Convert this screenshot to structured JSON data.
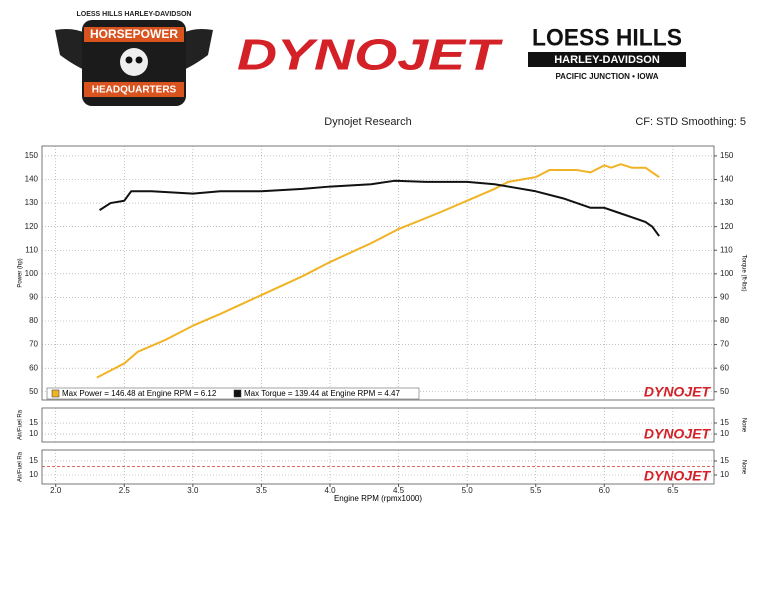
{
  "logos": {
    "left_top": "LOESS HILLS HARLEY-DAVIDSON",
    "left_main": "HORSEPOWER",
    "left_bottom": "HEADQUARTERS",
    "center": "DYNOJET",
    "right_main": "LOESS HILLS",
    "right_brand": "HARLEY-DAVIDSON",
    "right_sub": "PACIFIC JUNCTION • IOWA"
  },
  "header": {
    "title": "Dynojet Research",
    "settings": "CF: STD Smoothing: 5"
  },
  "chart_data": [
    {
      "type": "line",
      "ylabel": "Power (hp)",
      "y2label": "Torque (ft-lbs)",
      "brand": "DYNOJET",
      "xlim": [
        1.9,
        6.8
      ],
      "ylim": [
        46.5,
        154.2
      ],
      "yticks": [
        50,
        60,
        70,
        80,
        90,
        100,
        110,
        120,
        130,
        140,
        150
      ],
      "y2lim": [
        46.5,
        154.2
      ],
      "y2ticks": [
        50,
        60,
        70,
        80,
        90,
        100,
        110,
        120,
        130,
        140,
        150
      ],
      "grid": true,
      "series": [
        {
          "name": "Max Power = 146.48 at Engine RPM = 6.12",
          "color": "#f0b323",
          "x": [
            2.3,
            2.4,
            2.5,
            2.6,
            2.8,
            3.0,
            3.2,
            3.5,
            3.8,
            4.0,
            4.3,
            4.5,
            4.8,
            5.0,
            5.2,
            5.3,
            5.5,
            5.6,
            5.7,
            5.8,
            5.9,
            6.0,
            6.05,
            6.12,
            6.2,
            6.3,
            6.35,
            6.4
          ],
          "values": [
            56,
            59,
            62,
            67,
            72,
            78,
            83,
            91,
            99,
            105,
            113,
            119,
            126,
            131,
            136,
            139,
            141,
            144,
            144,
            144,
            143,
            146,
            145,
            146.48,
            145,
            145,
            143,
            141
          ]
        },
        {
          "name": "Max Torque = 139.44 at Engine RPM = 4.47",
          "color": "#111111",
          "axis": "y2",
          "x": [
            2.32,
            2.4,
            2.5,
            2.55,
            2.7,
            3.0,
            3.2,
            3.5,
            3.8,
            4.0,
            4.3,
            4.47,
            4.7,
            5.0,
            5.2,
            5.3,
            5.5,
            5.7,
            5.8,
            5.9,
            6.0,
            6.1,
            6.2,
            6.3,
            6.35,
            6.4
          ],
          "values": [
            127,
            130,
            131,
            135,
            135,
            134,
            135,
            135,
            136,
            137,
            138,
            139.44,
            139,
            139,
            138,
            137,
            135,
            132,
            130,
            128,
            128,
            126,
            124,
            122,
            120,
            116
          ]
        }
      ]
    },
    {
      "type": "line",
      "ylabel": "Air/Fuel Ra",
      "y2label": "None",
      "brand": "DYNOJET",
      "xlim": [
        1.9,
        6.8
      ],
      "ylim": [
        6.4,
        21.8
      ],
      "yticks": [
        10,
        15
      ],
      "y2lim": [
        6.4,
        21.8
      ],
      "y2ticks": [
        10,
        15
      ],
      "grid": true
    },
    {
      "type": "line",
      "ylabel": "Air/Fuel Ra",
      "y2label": "None",
      "brand": "DYNOJET",
      "xlabel": "Engine RPM (rpmx1000)",
      "xlim": [
        1.9,
        6.8
      ],
      "ylim": [
        6.8,
        18.9
      ],
      "yticks": [
        10,
        15
      ],
      "y2lim": [
        6.8,
        18.9
      ],
      "y2ticks": [
        10,
        15
      ],
      "grid": true,
      "reference_line": {
        "value": 13,
        "color": "#d9534f"
      },
      "xticks": [
        {
          "value": 2,
          "label": "2.0"
        },
        2.5,
        {
          "value": 3,
          "label": "3.0"
        },
        3.5,
        {
          "value": 4,
          "label": "4.0"
        },
        4.5,
        {
          "value": 5,
          "label": "5.0"
        },
        5.5,
        {
          "value": 6,
          "label": "6.0"
        },
        6.5
      ]
    }
  ]
}
